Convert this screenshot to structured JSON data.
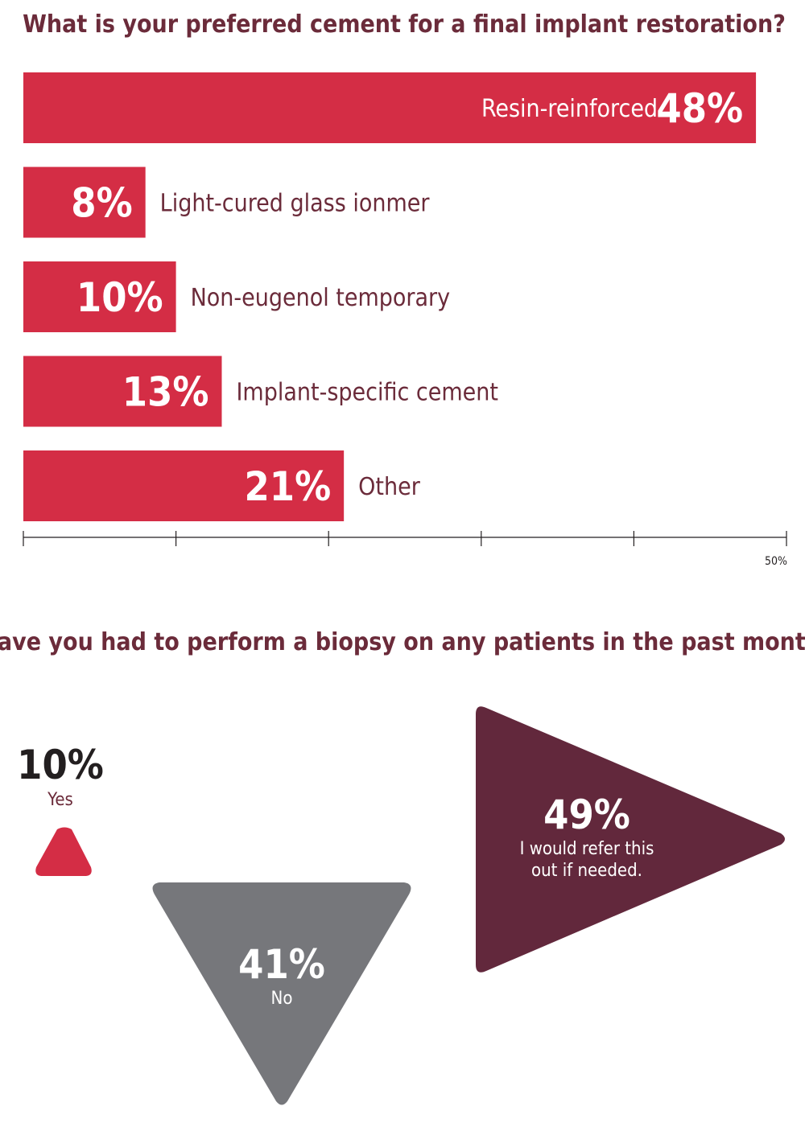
{
  "colors": {
    "bar": "#d42d45",
    "title": "#6b2b3a",
    "text_dark": "#231f20",
    "no_gray": "#76777b",
    "refer_maroon": "#62283c",
    "white": "#ffffff",
    "axis": "#231f20"
  },
  "chart_data": [
    {
      "type": "bar",
      "orientation": "horizontal",
      "title": "What is your preferred cement for a final implant restoration?",
      "categories": [
        "Resin-reinforced",
        "Light-cured glass ionmer",
        "Non-eugenol temporary",
        "Implant-specific cement",
        "Other"
      ],
      "values": [
        48,
        8,
        10,
        13,
        21
      ],
      "value_labels": [
        "48%",
        "8%",
        "10%",
        "13%",
        "21%"
      ],
      "xlim": [
        0,
        50
      ],
      "x_ticks": [
        0,
        10,
        20,
        30,
        40,
        50
      ],
      "x_tick_label_text": "50%",
      "grid": false,
      "legend": "none"
    },
    {
      "type": "pictorial",
      "title": "Have you had to perform a biopsy on any patients in the past month?",
      "categories": [
        "Yes",
        "No",
        "I would refer this out if needed."
      ],
      "values": [
        10,
        41,
        49
      ],
      "value_labels": [
        "10%",
        "41%",
        "49%"
      ],
      "shape_icons": [
        "triangle-up-icon",
        "triangle-down-icon",
        "triangle-right-icon"
      ]
    }
  ]
}
